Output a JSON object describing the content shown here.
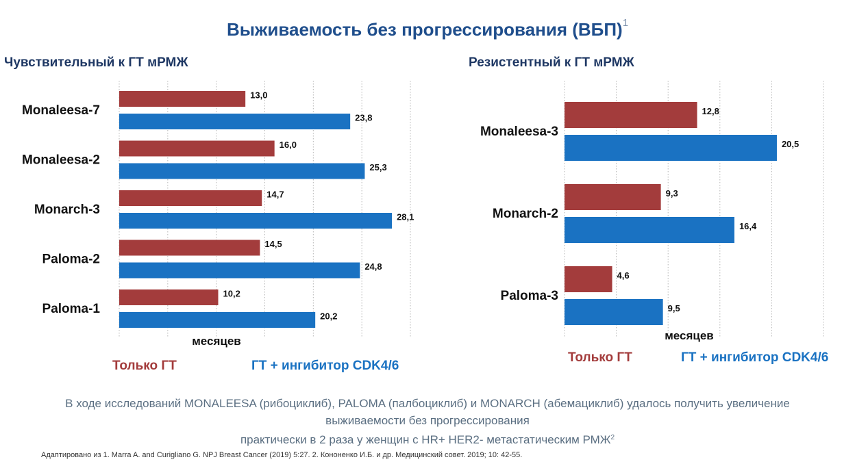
{
  "title": {
    "text": "Выживаемость без прогрессирования (ВБП)",
    "ref": "1"
  },
  "colors": {
    "title": "#1f4e8c",
    "series1": "#a33c3c",
    "series2": "#1a72c2",
    "note": "#5b6f82"
  },
  "chart_data": [
    {
      "type": "bar",
      "orientation": "horizontal",
      "title": "Чувствительный к ГТ мРМЖ",
      "xlabel": "месяцев",
      "categories": [
        "Monaleesa-7",
        "Monaleesa-2",
        "Monarch-3",
        "Paloma-2",
        "Paloma-1"
      ],
      "series": [
        {
          "name": "Только ГТ",
          "color": "#a33c3c",
          "values": [
            13.0,
            16.0,
            14.7,
            14.5,
            10.2
          ],
          "labels": [
            "13,0",
            "16,0",
            "14,7",
            "14,5",
            "10,2"
          ]
        },
        {
          "name": "ГТ + ингибитор CDK4/6",
          "color": "#1a72c2",
          "values": [
            23.8,
            25.3,
            28.1,
            24.8,
            20.2
          ],
          "labels": [
            "23,8",
            "25,3",
            "28,1",
            "24,8",
            "20,2"
          ]
        }
      ],
      "xlim": [
        0,
        30
      ],
      "grid": "vertical dotted every 5",
      "legend": "bottom"
    },
    {
      "type": "bar",
      "orientation": "horizontal",
      "title": "Резистентный к ГТ мРМЖ",
      "xlabel": "месяцев",
      "categories": [
        "Monaleesa-3",
        "Monarch-2",
        "Paloma-3"
      ],
      "series": [
        {
          "name": "Только ГТ",
          "color": "#a33c3c",
          "values": [
            12.8,
            9.3,
            4.6
          ],
          "labels": [
            "12,8",
            "9,3",
            "4,6"
          ]
        },
        {
          "name": "ГТ + ингибитор CDK4/6",
          "color": "#1a72c2",
          "values": [
            20.5,
            16.4,
            9.5
          ],
          "labels": [
            "20,5",
            "16,4",
            "9,5"
          ]
        }
      ],
      "xlim": [
        0,
        25
      ],
      "grid": "vertical dotted every 5",
      "legend": "bottom"
    }
  ],
  "legend": {
    "series1": "Только ГТ",
    "series2": "ГТ + ингибитор CDK4/6"
  },
  "note": {
    "line1": "В ходе исследований MONALEESA (рибоциклиб), PALOMA (палбоциклиб) и MONARCH (абемациклиб) удалось получить увеличение",
    "line2": "выживаемости без прогрессирования",
    "line3": "практически в 2 раза у женщин с HR+ HER2- метастатическим РМЖ",
    "ref": "2"
  },
  "source": "Адаптировано из 1. Marra A. and Curigliano G. NPJ Breast Cancer (2019) 5:27. 2. Кононенко И.Б. и др. Медицинский совет. 2019; 10: 42-55."
}
